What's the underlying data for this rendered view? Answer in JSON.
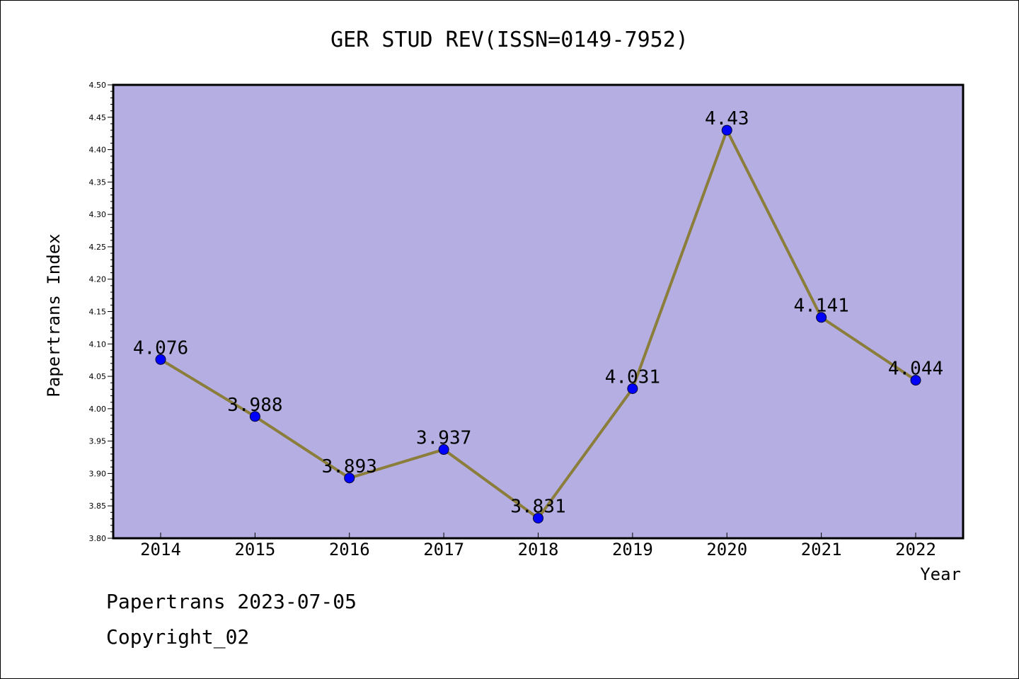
{
  "chart_data": {
    "type": "line",
    "title": "GER STUD REV(ISSN=0149-7952)",
    "xlabel": "Year",
    "ylabel": "Papertrans Index",
    "categories": [
      "2014",
      "2015",
      "2016",
      "2017",
      "2018",
      "2019",
      "2020",
      "2021",
      "2022"
    ],
    "series": [
      {
        "values": [
          4.076,
          3.988,
          3.893,
          3.937,
          3.831,
          4.031,
          4.43,
          4.141,
          4.044
        ],
        "labels": [
          "4.076",
          "3.988",
          "3.893",
          "3.937",
          "3.831",
          "4.031",
          "4.43",
          "4.141",
          "4.044"
        ]
      }
    ],
    "ylim": [
      3.8,
      4.5
    ],
    "yticks": [
      "3.80",
      "3.85",
      "3.90",
      "3.95",
      "4.00",
      "4.05",
      "4.10",
      "4.15",
      "4.20",
      "4.25",
      "4.30",
      "4.35",
      "4.40",
      "4.45",
      "4.50"
    ],
    "grid": false,
    "colors": {
      "plot_background": "#b5aee2",
      "line": "#8b7d3a",
      "marker": "#0000ff"
    }
  },
  "footer": {
    "line1": "Papertrans 2023-07-05",
    "line2": "Copyright_02"
  }
}
